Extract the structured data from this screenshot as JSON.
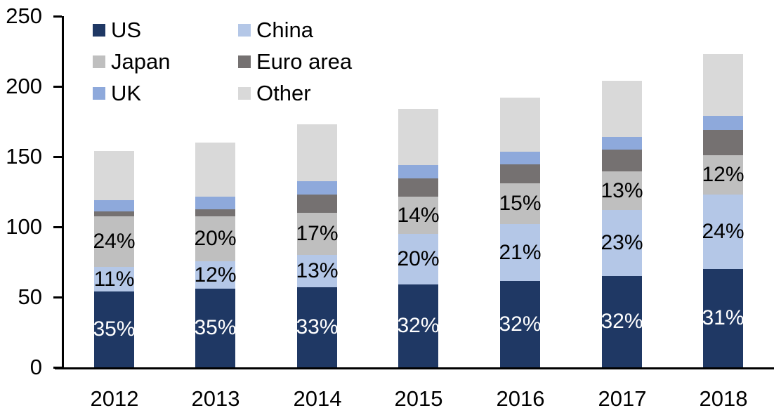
{
  "chart_data": {
    "type": "bar",
    "stacked": true,
    "categories": [
      "2012",
      "2013",
      "2014",
      "2015",
      "2016",
      "2017",
      "2018"
    ],
    "series": [
      {
        "name": "US",
        "color": "#1F3864",
        "values": [
          54,
          56,
          57,
          59,
          61.5,
          65,
          70
        ],
        "labels": [
          "35%",
          "35%",
          "33%",
          "32%",
          "32%",
          "32%",
          "31%"
        ],
        "label_color": "#FFFFFF"
      },
      {
        "name": "China",
        "color": "#B4C7E7",
        "values": [
          17.5,
          19.5,
          23,
          36,
          40.5,
          47,
          53
        ],
        "labels": [
          "11%",
          "12%",
          "13%",
          "20%",
          "21%",
          "23%",
          "24%"
        ],
        "label_color": "#000000"
      },
      {
        "name": "Japan",
        "color": "#BFBFBF",
        "values": [
          36,
          32,
          30,
          26.5,
          29,
          27.5,
          28
        ],
        "labels": [
          "24%",
          "20%",
          "17%",
          "14%",
          "15%",
          "13%",
          "12%"
        ],
        "label_color": "#000000"
      },
      {
        "name": "Euro area",
        "color": "#757171",
        "values": [
          3.5,
          5,
          13,
          13,
          13.5,
          15.5,
          18
        ],
        "labels": [
          "",
          "",
          "",
          "",
          "",
          "",
          ""
        ],
        "label_color": "#000000"
      },
      {
        "name": "UK",
        "color": "#8EA9DB",
        "values": [
          8,
          9,
          9.5,
          9.5,
          9,
          9,
          10
        ],
        "labels": [
          "",
          "",
          "",
          "",
          "",
          "",
          ""
        ],
        "label_color": "#000000"
      },
      {
        "name": "Other",
        "color": "#D9D9D9",
        "values": [
          35,
          38.5,
          40.5,
          40,
          38.5,
          40,
          44
        ],
        "labels": [
          "",
          "",
          "",
          "",
          "",
          "",
          ""
        ],
        "label_color": "#000000"
      }
    ],
    "totals": [
      154,
      160,
      173,
      184,
      192,
      204,
      223
    ],
    "y_axis": {
      "min": 0,
      "max": 250,
      "step": 50,
      "tick_labels": [
        "0",
        "50",
        "100",
        "150",
        "200",
        "250"
      ]
    },
    "legend": {
      "position": "top-left",
      "columns": 2,
      "items": [
        "US",
        "China",
        "Japan",
        "Euro area",
        "UK",
        "Other"
      ]
    },
    "layout_hints": {
      "grid": false,
      "axis_color": "#000000",
      "background": "#FFFFFF"
    }
  }
}
